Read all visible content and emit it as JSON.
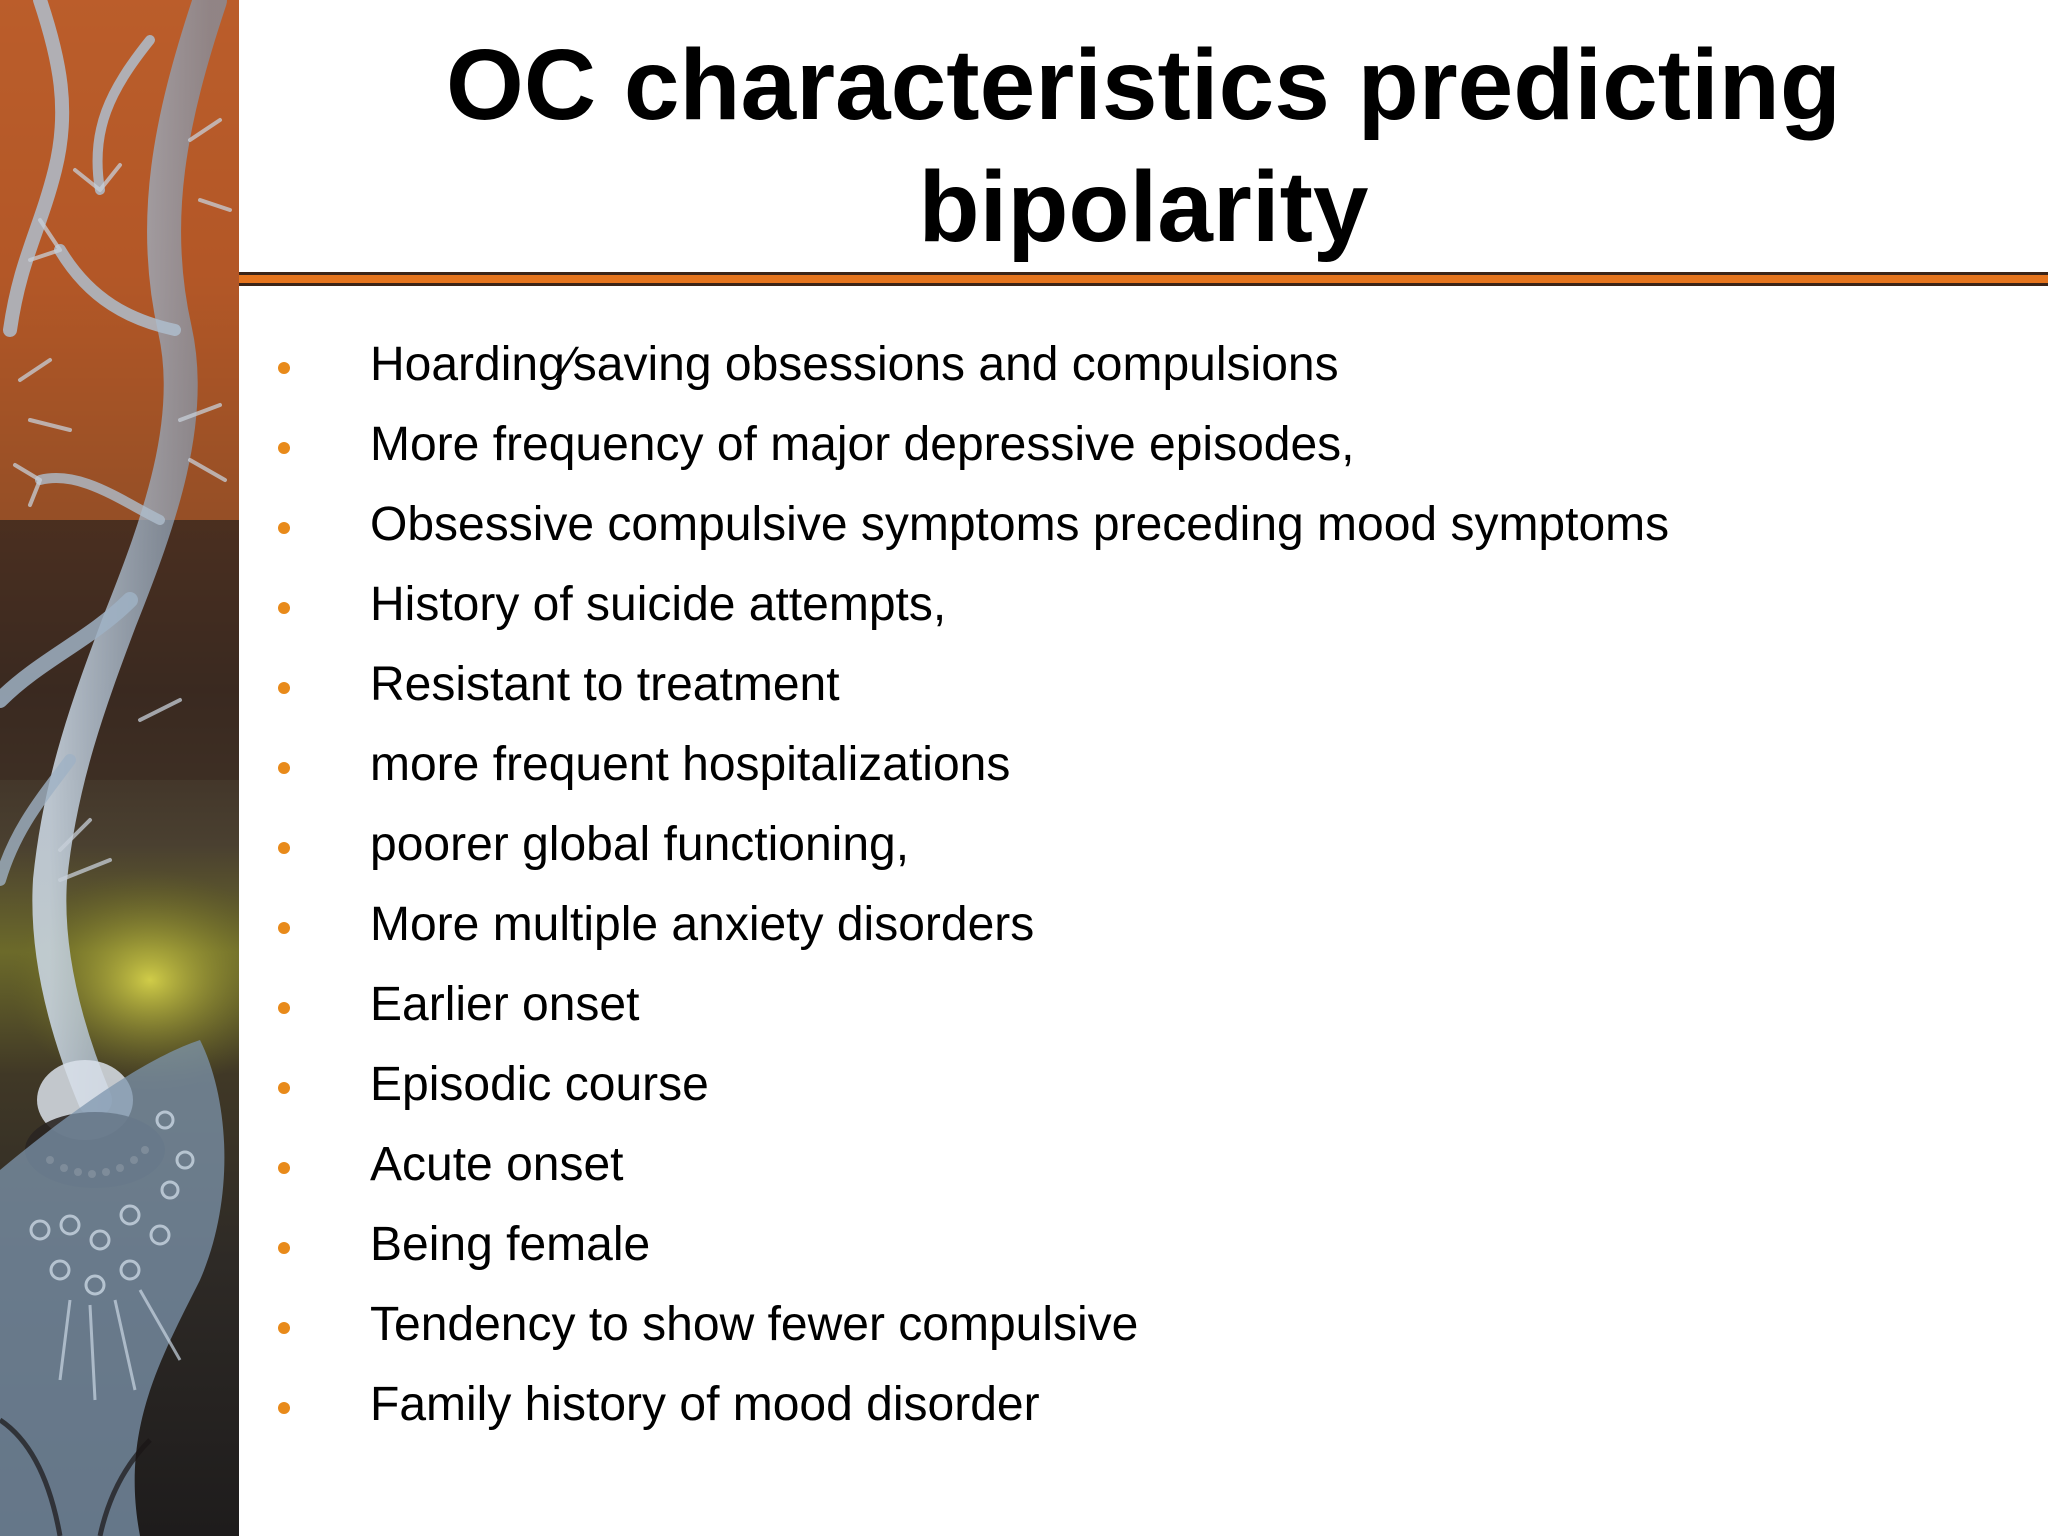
{
  "slide": {
    "title": "OC characteristics predicting bipolarity",
    "bullets": [
      "Hoarding⁄saving obsessions and compulsions",
      "More frequency of major depressive episodes,",
      "Obsessive compulsive symptoms preceding mood symptoms",
      "History of suicide attempts,",
      "Resistant to treatment",
      "more frequent hospitalizations",
      "poorer global functioning,",
      "More multiple anxiety disorders",
      "Earlier onset",
      "Episodic course",
      "Acute onset",
      "Being female",
      "Tendency to show fewer compulsive",
      "Family history of mood disorder"
    ],
    "colors": {
      "bullet": "#e88a1a",
      "rule_orange": "#e5741d",
      "rule_dark": "#3b2418",
      "text": "#000000",
      "background": "#ffffff"
    }
  }
}
